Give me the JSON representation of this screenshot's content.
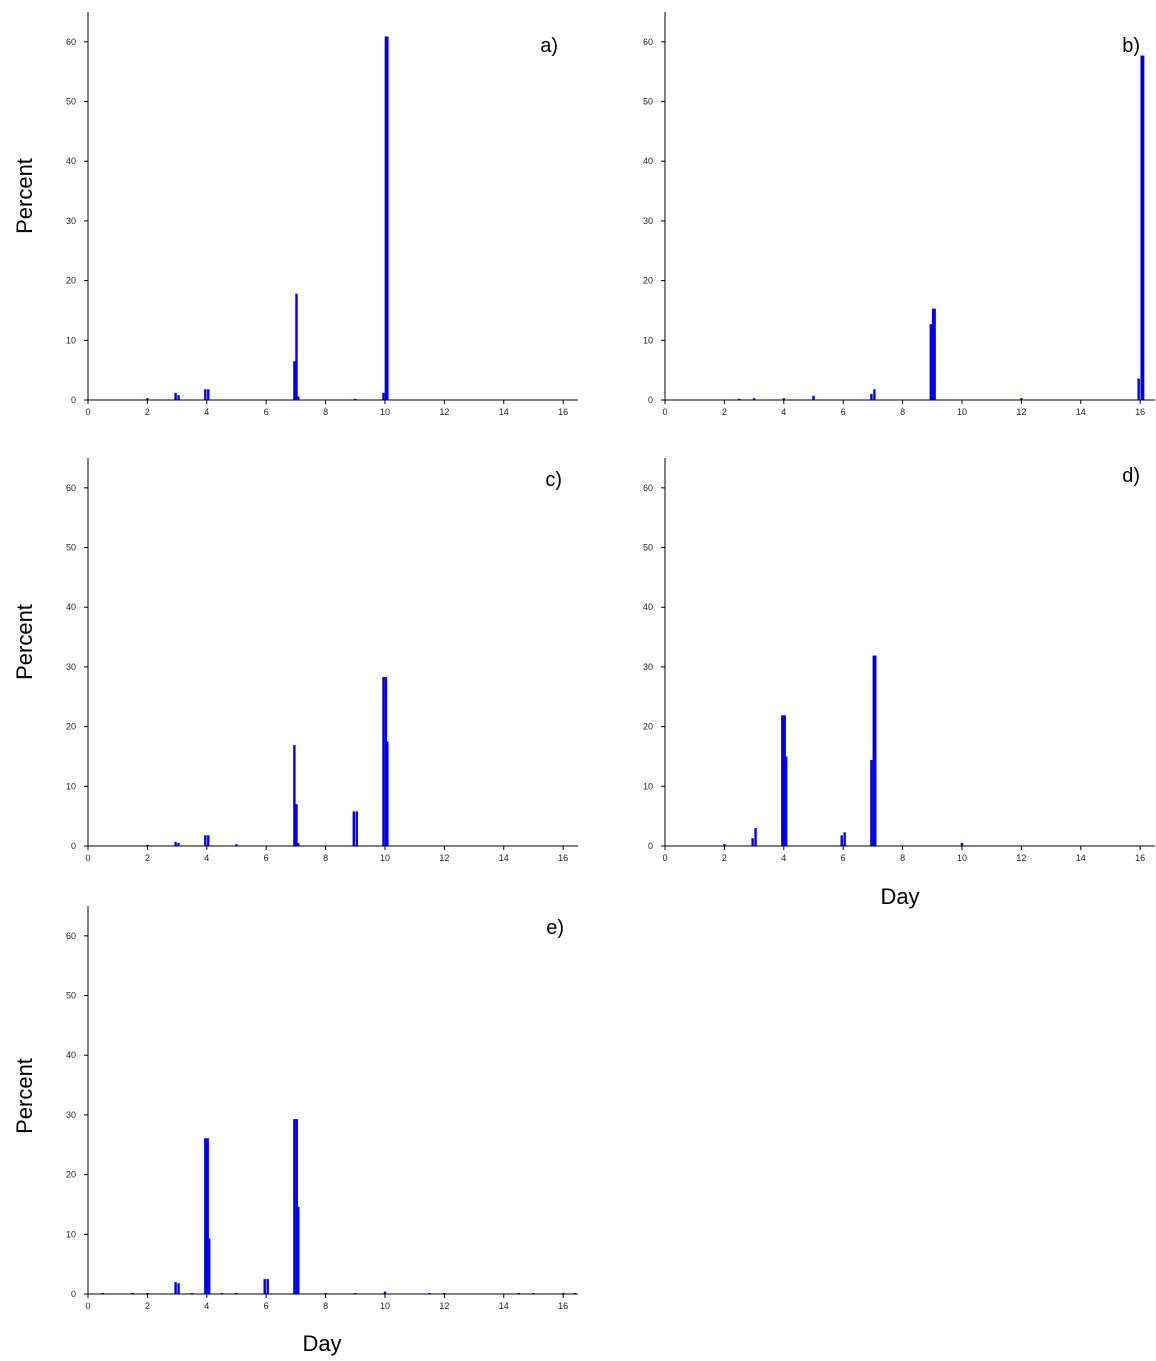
{
  "chart_data": [
    {
      "type": "bar",
      "panel_label": "a)",
      "ylabel": "Percent",
      "xlabel": "",
      "xlim": [
        0,
        16.5
      ],
      "ylim": [
        0,
        65
      ],
      "xticks": [
        "0",
        "2",
        "4",
        "6",
        "8",
        "10",
        "12",
        "14",
        "16"
      ],
      "yticks": [
        "0",
        "10",
        "20",
        "30",
        "40",
        "50",
        "60"
      ],
      "grid": false,
      "color": "#0000ee",
      "points": [
        {
          "x": 2.0,
          "y": 0.3
        },
        {
          "x": 2.95,
          "y": 1.2
        },
        {
          "x": 3.05,
          "y": 0.8
        },
        {
          "x": 3.95,
          "y": 1.8
        },
        {
          "x": 4.05,
          "y": 1.8
        },
        {
          "x": 6.95,
          "y": 6.5
        },
        {
          "x": 7.02,
          "y": 17.8
        },
        {
          "x": 7.08,
          "y": 0.6
        },
        {
          "x": 9.0,
          "y": 0.2
        },
        {
          "x": 9.95,
          "y": 1.2
        },
        {
          "x": 10.03,
          "y": 60.9
        },
        {
          "x": 10.08,
          "y": 60.9
        }
      ]
    },
    {
      "type": "bar",
      "panel_label": "b)",
      "ylabel": "",
      "xlabel": "",
      "xlim": [
        0,
        16.5
      ],
      "ylim": [
        0,
        65
      ],
      "xticks": [
        "0",
        "2",
        "4",
        "6",
        "8",
        "10",
        "12",
        "14",
        "16"
      ],
      "yticks": [
        "0",
        "10",
        "20",
        "30",
        "40",
        "50",
        "60"
      ],
      "grid": false,
      "color": "#0000ee",
      "points": [
        {
          "x": 2.5,
          "y": 0.2
        },
        {
          "x": 3.0,
          "y": 0.3
        },
        {
          "x": 4.0,
          "y": 0.3
        },
        {
          "x": 5.0,
          "y": 0.7
        },
        {
          "x": 6.95,
          "y": 1.0
        },
        {
          "x": 7.05,
          "y": 1.8
        },
        {
          "x": 8.95,
          "y": 12.7
        },
        {
          "x": 9.03,
          "y": 15.3
        },
        {
          "x": 9.08,
          "y": 15.3
        },
        {
          "x": 12.0,
          "y": 0.3
        },
        {
          "x": 15.95,
          "y": 3.6
        },
        {
          "x": 16.05,
          "y": 57.7
        },
        {
          "x": 16.1,
          "y": 57.7
        }
      ]
    },
    {
      "type": "bar",
      "panel_label": "c)",
      "ylabel": "Percent",
      "xlabel": "",
      "xlim": [
        0,
        16.5
      ],
      "ylim": [
        0,
        65
      ],
      "xticks": [
        "0",
        "2",
        "4",
        "6",
        "8",
        "10",
        "12",
        "14",
        "16"
      ],
      "yticks": [
        "0",
        "10",
        "20",
        "30",
        "40",
        "50",
        "60"
      ],
      "grid": false,
      "color": "#0000ee",
      "points": [
        {
          "x": 2.0,
          "y": 0.2
        },
        {
          "x": 2.95,
          "y": 0.7
        },
        {
          "x": 3.05,
          "y": 0.5
        },
        {
          "x": 3.95,
          "y": 1.8
        },
        {
          "x": 4.05,
          "y": 1.8
        },
        {
          "x": 5.0,
          "y": 0.3
        },
        {
          "x": 6.95,
          "y": 16.9
        },
        {
          "x": 7.02,
          "y": 7.0
        },
        {
          "x": 7.08,
          "y": 0.5
        },
        {
          "x": 8.95,
          "y": 5.8
        },
        {
          "x": 9.05,
          "y": 5.8
        },
        {
          "x": 9.95,
          "y": 28.3
        },
        {
          "x": 10.03,
          "y": 28.3
        },
        {
          "x": 10.08,
          "y": 17.5
        }
      ]
    },
    {
      "type": "bar",
      "panel_label": "d)",
      "ylabel": "",
      "xlabel": "Day",
      "xlim": [
        0,
        16.5
      ],
      "ylim": [
        0,
        65
      ],
      "xticks": [
        "0",
        "2",
        "4",
        "6",
        "8",
        "10",
        "12",
        "14",
        "16"
      ],
      "yticks": [
        "0",
        "10",
        "20",
        "30",
        "40",
        "50",
        "60"
      ],
      "grid": false,
      "color": "#0000ee",
      "points": [
        {
          "x": 2.0,
          "y": 0.3
        },
        {
          "x": 2.95,
          "y": 1.3
        },
        {
          "x": 3.05,
          "y": 3.0
        },
        {
          "x": 3.95,
          "y": 21.9
        },
        {
          "x": 4.03,
          "y": 21.9
        },
        {
          "x": 4.08,
          "y": 15.0
        },
        {
          "x": 5.95,
          "y": 1.8
        },
        {
          "x": 6.05,
          "y": 2.3
        },
        {
          "x": 6.95,
          "y": 14.4
        },
        {
          "x": 7.03,
          "y": 31.9
        },
        {
          "x": 7.08,
          "y": 31.9
        },
        {
          "x": 10.0,
          "y": 0.5
        }
      ]
    },
    {
      "type": "bar",
      "panel_label": "e)",
      "ylabel": "Percent",
      "xlabel": "Day",
      "xlim": [
        0,
        16.5
      ],
      "ylim": [
        0,
        65
      ],
      "xticks": [
        "0",
        "2",
        "4",
        "6",
        "8",
        "10",
        "12",
        "14",
        "16"
      ],
      "yticks": [
        "0",
        "10",
        "20",
        "30",
        "40",
        "50",
        "60"
      ],
      "grid": false,
      "color": "#0000ee",
      "points": [
        {
          "x": 0.5,
          "y": 0.15
        },
        {
          "x": 1.5,
          "y": 0.15
        },
        {
          "x": 2.0,
          "y": 0.15
        },
        {
          "x": 2.95,
          "y": 2.0
        },
        {
          "x": 3.05,
          "y": 1.8
        },
        {
          "x": 3.5,
          "y": 0.15
        },
        {
          "x": 3.95,
          "y": 26.1
        },
        {
          "x": 4.03,
          "y": 26.1
        },
        {
          "x": 4.08,
          "y": 9.3
        },
        {
          "x": 4.5,
          "y": 0.15
        },
        {
          "x": 5.0,
          "y": 0.15
        },
        {
          "x": 5.95,
          "y": 2.5
        },
        {
          "x": 6.05,
          "y": 2.5
        },
        {
          "x": 6.95,
          "y": 29.3
        },
        {
          "x": 7.03,
          "y": 29.3
        },
        {
          "x": 7.08,
          "y": 14.6
        },
        {
          "x": 8.0,
          "y": 0.15
        },
        {
          "x": 9.0,
          "y": 0.15
        },
        {
          "x": 10.0,
          "y": 0.4
        },
        {
          "x": 11.5,
          "y": 0.15
        },
        {
          "x": 12.0,
          "y": 0.15
        },
        {
          "x": 14.5,
          "y": 0.15
        },
        {
          "x": 15.0,
          "y": 0.15
        },
        {
          "x": 16.0,
          "y": 0.15
        },
        {
          "x": 16.4,
          "y": 0.15
        }
      ]
    }
  ]
}
